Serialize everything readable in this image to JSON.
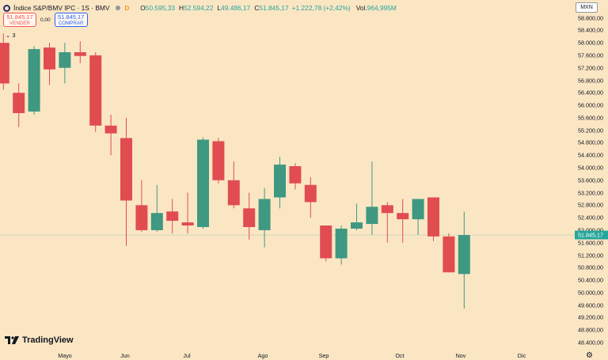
{
  "header": {
    "title": "Índice S&P/BMV IPC · 1S · BMV",
    "badge": "D",
    "o_label": "O",
    "o_value": "50.595,33",
    "h_label": "H",
    "h_value": "52.594,22",
    "l_label": "L",
    "l_value": "49.486,17",
    "c_label": "C",
    "c_value": "51.845,17",
    "change": "+1.222,78 (+2,42%)",
    "vol_label": "Vol.",
    "vol_value": "964,995M"
  },
  "trade": {
    "sell_price": "51.845,17",
    "sell_label": "VENDER",
    "spread": "0,00",
    "buy_price": "51.845,17",
    "buy_label": "COMPRAR"
  },
  "indicators_toggle": {
    "icon": "chevron-down-icon",
    "count": "3"
  },
  "currency": "MXN",
  "last_price_tag": "51.845,17",
  "brand": "TradingView",
  "colors": {
    "background": "#fbe6c4",
    "up": "#3f9882",
    "down": "#e14c50",
    "last_line": "#26a69a"
  },
  "chart_data": {
    "type": "candlestick",
    "y_axis_ticks": [
      "58.800,00",
      "58.400,00",
      "58.000,00",
      "57.600,00",
      "57.200,00",
      "56.800,00",
      "56.400,00",
      "56.000,00",
      "55.600,00",
      "55.200,00",
      "54.800,00",
      "54.400,00",
      "54.000,00",
      "53.600,00",
      "53.200,00",
      "52.800,00",
      "52.400,00",
      "52.000,00",
      "51.600,00",
      "51.200,00",
      "50.800,00",
      "50.400,00",
      "50.000,00",
      "49.600,00",
      "49.200,00",
      "48.800,00",
      "48.400,00"
    ],
    "x_axis_ticks": [
      "Mayo",
      "Jun",
      "Jul",
      "Ago",
      "Sep",
      "Oct",
      "Nov",
      "Dic"
    ],
    "ylim": [
      48400,
      58900
    ],
    "last_value": 51845.17,
    "candles": [
      {
        "o": 58000,
        "h": 58300,
        "l": 56500,
        "c": 56700
      },
      {
        "o": 56400,
        "h": 56700,
        "l": 55300,
        "c": 55750
      },
      {
        "o": 55800,
        "h": 57900,
        "l": 55700,
        "c": 57800
      },
      {
        "o": 57850,
        "h": 58000,
        "l": 56650,
        "c": 57150
      },
      {
        "o": 57200,
        "h": 58000,
        "l": 56700,
        "c": 57700
      },
      {
        "o": 57700,
        "h": 58050,
        "l": 57350,
        "c": 57580
      },
      {
        "o": 57600,
        "h": 57700,
        "l": 55150,
        "c": 55350
      },
      {
        "o": 55350,
        "h": 55700,
        "l": 54400,
        "c": 55100
      },
      {
        "o": 54950,
        "h": 55600,
        "l": 51500,
        "c": 52950
      },
      {
        "o": 52800,
        "h": 53600,
        "l": 51950,
        "c": 52000
      },
      {
        "o": 52000,
        "h": 53450,
        "l": 51950,
        "c": 52550
      },
      {
        "o": 52600,
        "h": 53000,
        "l": 51900,
        "c": 52300
      },
      {
        "o": 52250,
        "h": 53200,
        "l": 51900,
        "c": 52150
      },
      {
        "o": 52100,
        "h": 54970,
        "l": 52050,
        "c": 54900
      },
      {
        "o": 54850,
        "h": 54950,
        "l": 53500,
        "c": 53600
      },
      {
        "o": 53600,
        "h": 54200,
        "l": 52700,
        "c": 52800
      },
      {
        "o": 52700,
        "h": 53200,
        "l": 51700,
        "c": 52100
      },
      {
        "o": 52000,
        "h": 53350,
        "l": 51450,
        "c": 53000
      },
      {
        "o": 53050,
        "h": 54350,
        "l": 52700,
        "c": 54100
      },
      {
        "o": 54050,
        "h": 54150,
        "l": 53300,
        "c": 53500
      },
      {
        "o": 53450,
        "h": 53700,
        "l": 52400,
        "c": 52900
      },
      {
        "o": 52150,
        "h": 52150,
        "l": 51000,
        "c": 51100
      },
      {
        "o": 51100,
        "h": 52150,
        "l": 50900,
        "c": 52050
      },
      {
        "o": 52050,
        "h": 52850,
        "l": 52000,
        "c": 52250
      },
      {
        "o": 52200,
        "h": 54200,
        "l": 51850,
        "c": 52750
      },
      {
        "o": 52800,
        "h": 52900,
        "l": 51600,
        "c": 52550
      },
      {
        "o": 52550,
        "h": 53000,
        "l": 51600,
        "c": 52350
      },
      {
        "o": 52350,
        "h": 53000,
        "l": 51850,
        "c": 53000
      },
      {
        "o": 53050,
        "h": 53050,
        "l": 51650,
        "c": 51800
      },
      {
        "o": 51800,
        "h": 51900,
        "l": 50650,
        "c": 50650
      },
      {
        "o": 50595.33,
        "h": 52594.22,
        "l": 49486.17,
        "c": 51845.17
      }
    ]
  }
}
